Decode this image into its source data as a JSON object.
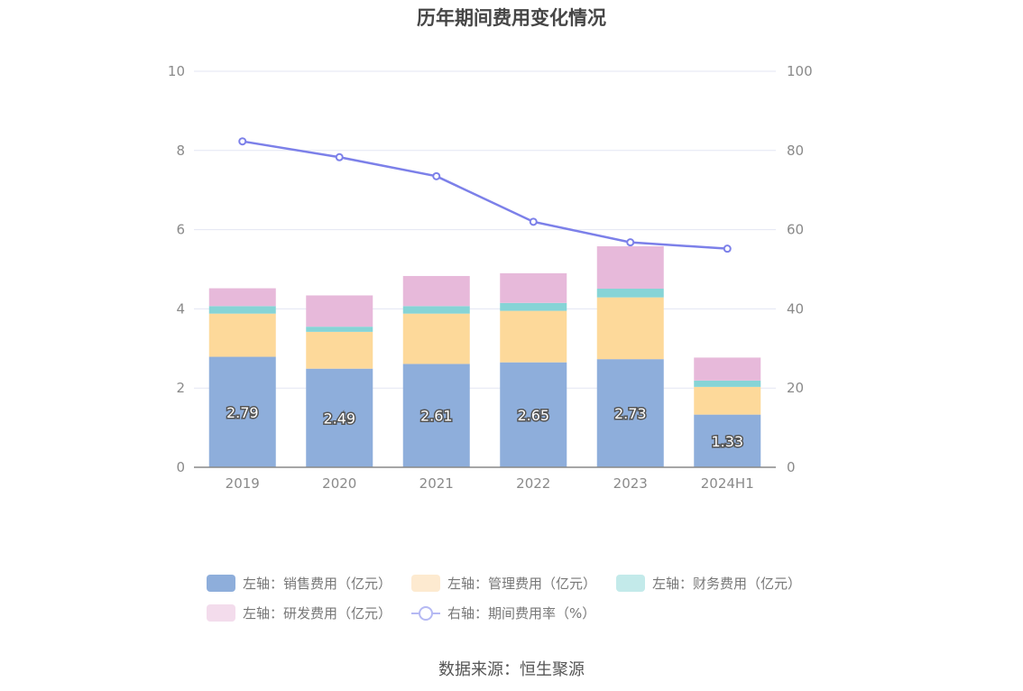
{
  "chart_data": {
    "type": "bar",
    "title": "历年期间费用变化情况",
    "categories": [
      "2019",
      "2020",
      "2021",
      "2022",
      "2023",
      "2024H1"
    ],
    "stacked": true,
    "series": [
      {
        "name": "左轴：销售费用（亿元）",
        "axis": "left",
        "color": "#8eaedb",
        "values": [
          2.79,
          2.49,
          2.61,
          2.65,
          2.73,
          1.33
        ],
        "show_labels": true
      },
      {
        "name": "左轴：管理费用（亿元）",
        "axis": "left",
        "color": "#fdd99a",
        "values": [
          1.09,
          0.93,
          1.27,
          1.3,
          1.56,
          0.7
        ]
      },
      {
        "name": "左轴：财务费用（亿元）",
        "axis": "left",
        "color": "#86d4d6",
        "values": [
          0.19,
          0.13,
          0.19,
          0.2,
          0.22,
          0.16
        ]
      },
      {
        "name": "左轴：研发费用（亿元）",
        "axis": "left",
        "color": "#e7b9da",
        "values": [
          0.45,
          0.79,
          0.76,
          0.75,
          1.07,
          0.58
        ]
      }
    ],
    "line_series": {
      "name": "右轴：期间费用率（%）",
      "axis": "right",
      "color": "#7c80e9",
      "values": [
        82.3,
        78.3,
        73.5,
        62.0,
        56.8,
        55.2
      ]
    },
    "y_left": {
      "min": 0,
      "max": 10,
      "ticks": [
        0,
        2,
        4,
        6,
        8,
        10
      ]
    },
    "y_right": {
      "min": 0,
      "max": 100,
      "ticks": [
        0,
        20,
        40,
        60,
        80,
        100
      ]
    },
    "grid": true,
    "legend_position": "bottom"
  },
  "legend": {
    "rows": [
      [
        {
          "label": "左轴：销售费用（亿元）",
          "color": "#8eaedb",
          "kind": "bar"
        },
        {
          "label": "左轴：管理费用（亿元）",
          "color": "#fdead0",
          "kind": "bar"
        },
        {
          "label": "左轴：财务费用（亿元）",
          "color": "#c3eaea",
          "kind": "bar"
        }
      ],
      [
        {
          "label": "左轴：研发费用（亿元）",
          "color": "#f3dcec",
          "kind": "bar"
        },
        {
          "label": "右轴：期间费用率（%）",
          "color": "#b5b9f3",
          "kind": "line"
        }
      ]
    ]
  },
  "source": "数据来源：恒生聚源"
}
